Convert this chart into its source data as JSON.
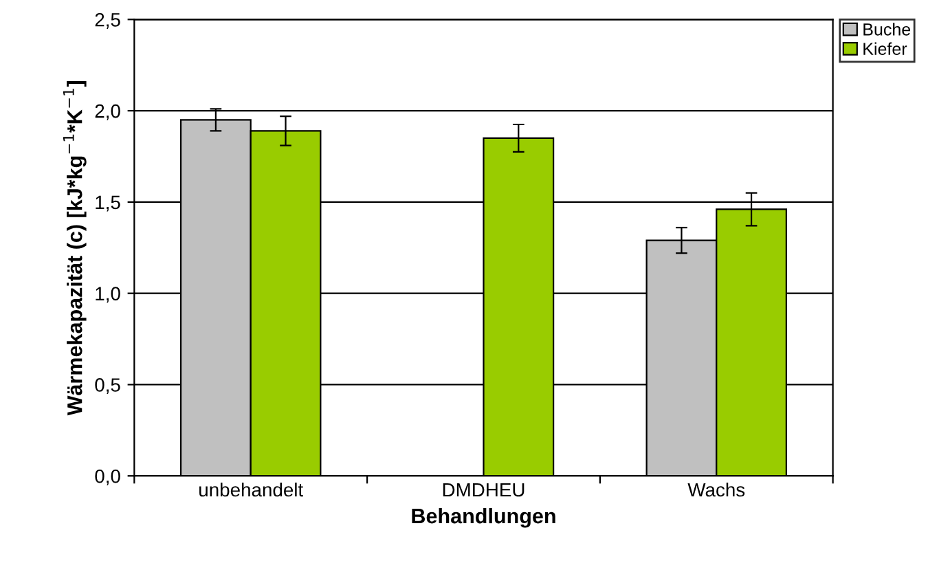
{
  "chart_data": {
    "type": "bar",
    "xlabel": "Behandlungen",
    "ylabel": "Wärmekapazität (c) [kJ*kg$^{−1}$*K$^{−1}$]",
    "categories": [
      "unbehandelt",
      "DMDHEU",
      "Wachs"
    ],
    "series": [
      {
        "name": "Buche",
        "color": "#c0c0c0",
        "values": [
          1.95,
          null,
          1.29
        ],
        "errors": [
          0.06,
          null,
          0.07
        ]
      },
      {
        "name": "Kiefer",
        "color": "#99cc00",
        "values": [
          1.89,
          1.85,
          1.46
        ],
        "errors": [
          0.08,
          0.075,
          0.09
        ]
      }
    ],
    "ylim": [
      0,
      2.5
    ],
    "yticks": [
      {
        "value": 0,
        "label": "0,0"
      },
      {
        "value": 0.5,
        "label": "0,5"
      },
      {
        "value": 1.0,
        "label": "1,0"
      },
      {
        "value": 1.5,
        "label": "1,5"
      },
      {
        "value": 2.0,
        "label": "2,0"
      },
      {
        "value": 2.5,
        "label": "2,5"
      }
    ],
    "grid": "y",
    "legend": "top right"
  }
}
